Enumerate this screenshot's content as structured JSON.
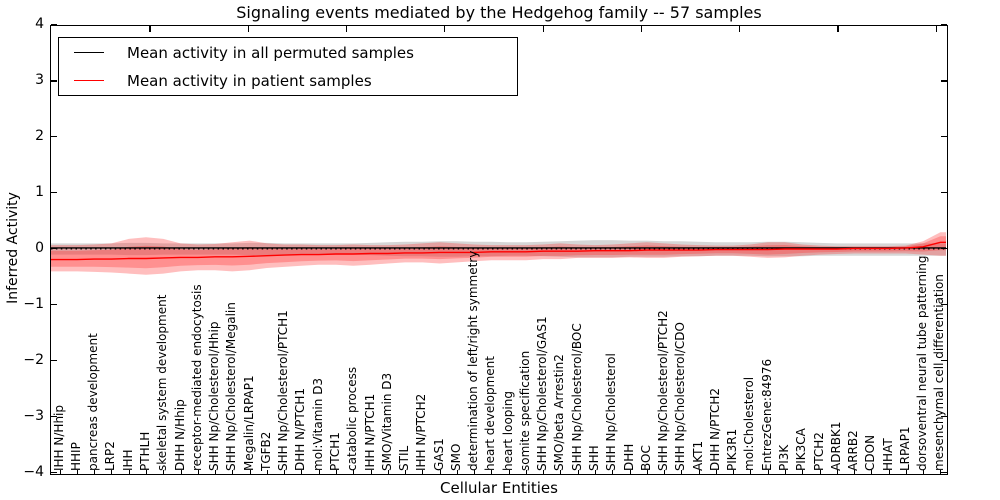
{
  "figure": {
    "title": "Signaling events mediated by the Hedgehog family -- 57 samples",
    "xlabel": "Cellular Entities",
    "ylabel": "Inferred Activity",
    "legend": [
      {
        "label": "Mean activity in all permuted samples",
        "color": "#000000"
      },
      {
        "label": "Mean activity in patient samples",
        "color": "#ff0000"
      }
    ]
  },
  "chart_data": {
    "type": "line",
    "title": "Signaling events mediated by the Hedgehog family -- 57 samples",
    "xlabel": "Cellular Entities",
    "ylabel": "Inferred Activity",
    "ylim": [
      -4,
      4
    ],
    "yticks": [
      4,
      3,
      2,
      1,
      0,
      -1,
      -2,
      -3,
      -4
    ],
    "grid": false,
    "legend_position": "upper left",
    "zero_line_style": "dotted",
    "inner_band_scale": 0.6,
    "categories": [
      "IHH N/Hhip",
      "HHIP",
      "pancreas development",
      "LRP2",
      "IHH",
      "PTHLH",
      "skeletal system development",
      "DHH N/Hhip",
      "receptor-mediated endocytosis",
      "SHH Np/Cholesterol/Hhip",
      "SHH Np/Cholesterol/Megalin",
      "Megalin/LRPAP1",
      "TGFB2",
      "SHH Np/Cholesterol/PTCH1",
      "DHH N/PTCH1",
      "mol:Vitamin D3",
      "PTCH1",
      "catabolic process",
      "IHH N/PTCH1",
      "SMO/Vitamin D3",
      "STIL",
      "IHH N/PTCH2",
      "GAS1",
      "SMO",
      "determination of left/right symmetry",
      "heart development",
      "heart looping",
      "somite specification",
      "SHH Np/Cholesterol/GAS1",
      "SMO/beta Arrestin2",
      "SHH Np/Cholesterol/BOC",
      "SHH",
      "SHH Np/Cholesterol",
      "DHH",
      "BOC",
      "SHH Np/Cholesterol/PTCH2",
      "SHH Np/Cholesterol/CDO",
      "AKT1",
      "DHH N/PTCH2",
      "PIK3R1",
      "mol:Cholesterol",
      "EntrezGene:84976",
      "PI3K",
      "PIK3CA",
      "PTCH2",
      "ADRBK1",
      "ARRB2",
      "CDON",
      "HHAT",
      "LRPAP1",
      "dorsoventral neural tube patterning",
      "mesenchymal cell differentiation"
    ],
    "series": [
      {
        "name": "Mean activity in all permuted samples",
        "color": "#000000",
        "band_color": "rgba(0,0,0,0.16)",
        "double_band": false,
        "values": [
          0.02,
          0.02,
          0.02,
          0.02,
          0.02,
          0.02,
          0.02,
          0.02,
          0.02,
          0.02,
          0.02,
          0.02,
          0.02,
          0.02,
          0.02,
          0.02,
          0.02,
          0.02,
          0.02,
          0.02,
          0.02,
          0.02,
          0.02,
          0.02,
          0.02,
          0.02,
          0.02,
          0.02,
          0.02,
          0.02,
          0.02,
          0.02,
          0.02,
          0.02,
          0.02,
          0.02,
          0.02,
          0.02,
          0.02,
          0.02,
          0.02,
          0.02,
          0.02,
          0.02,
          0.02,
          0.02,
          0.02,
          0.02,
          0.02,
          0.02,
          0.02,
          0.02
        ],
        "band_top": [
          0.1,
          0.1,
          0.1,
          0.1,
          0.11,
          0.11,
          0.1,
          0.1,
          0.1,
          0.1,
          0.1,
          0.11,
          0.11,
          0.1,
          0.1,
          0.1,
          0.1,
          0.1,
          0.11,
          0.12,
          0.13,
          0.13,
          0.14,
          0.14,
          0.13,
          0.13,
          0.12,
          0.12,
          0.13,
          0.14,
          0.15,
          0.16,
          0.16,
          0.15,
          0.15,
          0.14,
          0.14,
          0.13,
          0.12,
          0.12,
          0.12,
          0.13,
          0.13,
          0.12,
          0.11,
          0.1,
          0.1,
          0.1,
          0.1,
          0.1,
          0.1,
          0.1
        ],
        "band_bottom": [
          -0.1,
          -0.1,
          -0.1,
          -0.1,
          -0.11,
          -0.11,
          -0.1,
          -0.1,
          -0.1,
          -0.1,
          -0.1,
          -0.11,
          -0.11,
          -0.1,
          -0.1,
          -0.1,
          -0.1,
          -0.1,
          -0.11,
          -0.12,
          -0.13,
          -0.13,
          -0.14,
          -0.14,
          -0.13,
          -0.13,
          -0.12,
          -0.12,
          -0.13,
          -0.14,
          -0.15,
          -0.15,
          -0.15,
          -0.14,
          -0.14,
          -0.14,
          -0.13,
          -0.13,
          -0.12,
          -0.12,
          -0.12,
          -0.13,
          -0.13,
          -0.13,
          -0.12,
          -0.12,
          -0.12,
          -0.12,
          -0.12,
          -0.12,
          -0.12,
          -0.12
        ]
      },
      {
        "name": "Mean activity in patient samples",
        "color": "#ff0000",
        "band_color": "rgba(255,40,40,0.30)",
        "double_band": true,
        "values": [
          -0.19,
          -0.19,
          -0.18,
          -0.18,
          -0.17,
          -0.17,
          -0.16,
          -0.15,
          -0.15,
          -0.14,
          -0.14,
          -0.13,
          -0.12,
          -0.11,
          -0.1,
          -0.1,
          -0.09,
          -0.09,
          -0.08,
          -0.08,
          -0.07,
          -0.07,
          -0.06,
          -0.06,
          -0.06,
          -0.05,
          -0.05,
          -0.05,
          -0.04,
          -0.04,
          -0.04,
          -0.03,
          -0.03,
          -0.03,
          -0.02,
          -0.02,
          -0.02,
          -0.02,
          -0.01,
          -0.01,
          -0.01,
          -0.01,
          0.0,
          0.0,
          0.0,
          0.0,
          0.01,
          0.01,
          0.01,
          0.02,
          0.04,
          0.12
        ],
        "band_top": [
          0.07,
          0.07,
          0.08,
          0.1,
          0.18,
          0.21,
          0.18,
          0.1,
          0.08,
          0.09,
          0.12,
          0.15,
          0.1,
          0.08,
          0.08,
          0.07,
          0.07,
          0.08,
          0.07,
          0.07,
          0.08,
          0.1,
          0.12,
          0.1,
          0.08,
          0.07,
          0.07,
          0.07,
          0.08,
          0.1,
          0.08,
          0.07,
          0.08,
          0.1,
          0.12,
          0.1,
          0.08,
          0.07,
          0.06,
          0.06,
          0.08,
          0.12,
          0.12,
          0.08,
          0.06,
          0.05,
          0.05,
          0.05,
          0.05,
          0.06,
          0.14,
          0.3
        ],
        "band_bottom": [
          -0.4,
          -0.4,
          -0.41,
          -0.42,
          -0.44,
          -0.46,
          -0.44,
          -0.4,
          -0.38,
          -0.38,
          -0.4,
          -0.38,
          -0.34,
          -0.32,
          -0.3,
          -0.28,
          -0.28,
          -0.3,
          -0.28,
          -0.26,
          -0.24,
          -0.24,
          -0.26,
          -0.24,
          -0.22,
          -0.2,
          -0.2,
          -0.2,
          -0.18,
          -0.18,
          -0.16,
          -0.16,
          -0.16,
          -0.15,
          -0.16,
          -0.16,
          -0.14,
          -0.13,
          -0.12,
          -0.12,
          -0.14,
          -0.16,
          -0.15,
          -0.12,
          -0.1,
          -0.09,
          -0.08,
          -0.08,
          -0.08,
          -0.08,
          -0.1,
          -0.12
        ]
      }
    ]
  }
}
